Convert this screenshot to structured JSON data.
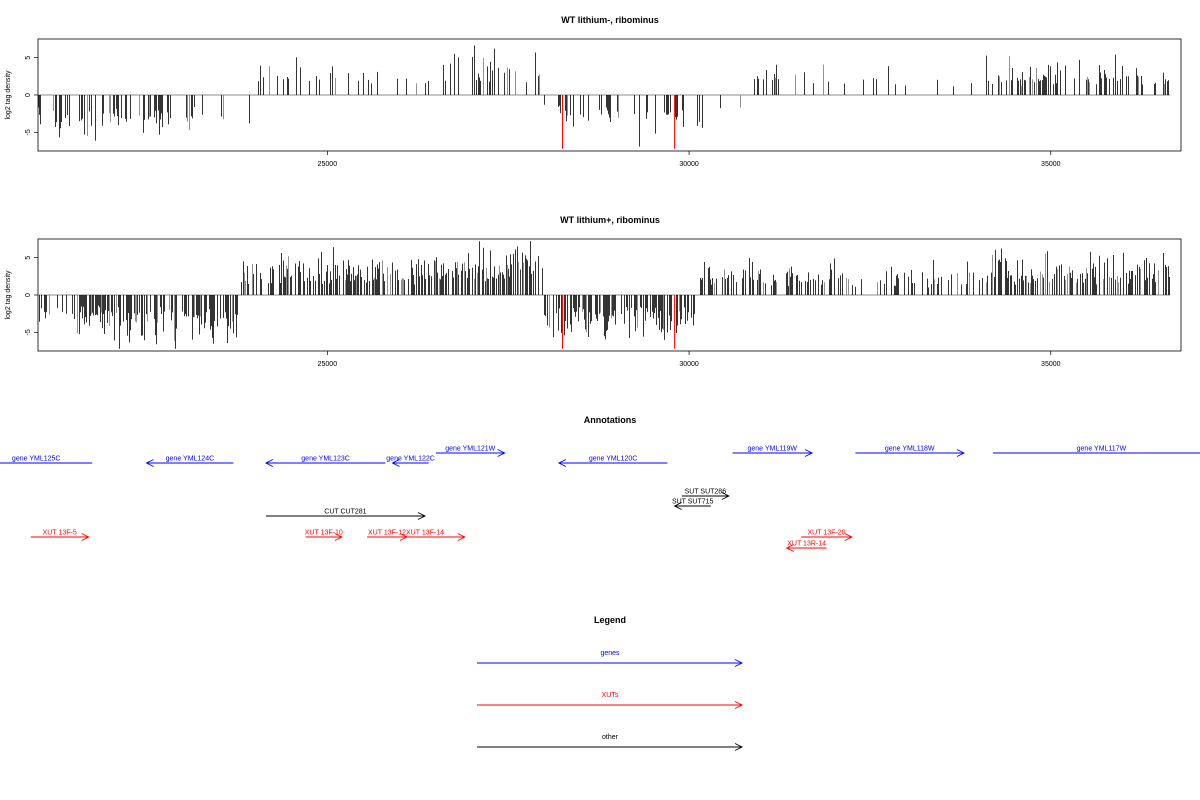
{
  "chart_data": [
    {
      "type": "bar",
      "title": "WT lithium-, ribominus",
      "ylabel": "log2 tag density",
      "xlim": [
        21000,
        36800
      ],
      "ylim": [
        -7.5,
        7.5
      ],
      "x_ticks": [
        25000,
        30000,
        35000
      ],
      "y_ticks": [
        -5,
        0,
        5
      ],
      "x_tick_labels": [
        "25000",
        "30000",
        "35000"
      ],
      "y_tick_labels": [
        "-5",
        "0",
        "5"
      ],
      "baseline_span": [
        21000,
        36650
      ],
      "density_profile": [
        {
          "start": 21000,
          "end": 21200,
          "sign": -1,
          "height": 3.0,
          "dens": 0.25
        },
        {
          "start": 21200,
          "end": 22100,
          "sign": -1,
          "height": 4.0,
          "dens": 0.35
        },
        {
          "start": 22100,
          "end": 23200,
          "sign": -1,
          "height": 4.2,
          "dens": 0.4
        },
        {
          "start": 23200,
          "end": 23950,
          "sign": -1,
          "height": 3.0,
          "dens": 0.06
        },
        {
          "start": 23950,
          "end": 24600,
          "sign": 1,
          "height": 3.8,
          "dens": 0.25
        },
        {
          "start": 24600,
          "end": 26700,
          "sign": 1,
          "height": 2.8,
          "dens": 0.14
        },
        {
          "start": 26700,
          "end": 28000,
          "sign": 1,
          "height": 4.5,
          "dens": 0.3
        },
        {
          "start": 28000,
          "end": 28300,
          "sign": -1,
          "height": 2.5,
          "dens": 0.1
        },
        {
          "start": 28300,
          "end": 30200,
          "sign": -1,
          "height": 4.0,
          "dens": 0.22
        },
        {
          "start": 30200,
          "end": 30850,
          "sign": -1,
          "height": 2.5,
          "dens": 0.06
        },
        {
          "start": 30850,
          "end": 32200,
          "sign": 1,
          "height": 2.8,
          "dens": 0.18
        },
        {
          "start": 32200,
          "end": 34100,
          "sign": 1,
          "height": 2.5,
          "dens": 0.1
        },
        {
          "start": 34100,
          "end": 36650,
          "sign": 1,
          "height": 3.2,
          "dens": 0.35
        }
      ],
      "highlights": [
        {
          "x": 28250,
          "value": -7.2,
          "color": "#ff0000"
        },
        {
          "x": 29800,
          "value": -7.2,
          "color": "#ff0000"
        }
      ]
    },
    {
      "type": "bar",
      "title": "WT lithium+, ribominus",
      "ylabel": "log2 tag density",
      "xlim": [
        21000,
        36800
      ],
      "ylim": [
        -7.5,
        7.5
      ],
      "x_ticks": [
        25000,
        30000,
        35000
      ],
      "y_ticks": [
        -5,
        0,
        5
      ],
      "x_tick_labels": [
        "25000",
        "30000",
        "35000"
      ],
      "y_tick_labels": [
        "-5",
        "0",
        "5"
      ],
      "baseline_span": [
        21000,
        36650
      ],
      "density_profile": [
        {
          "start": 21000,
          "end": 21450,
          "sign": -1,
          "height": 3.0,
          "dens": 0.3
        },
        {
          "start": 21450,
          "end": 22100,
          "sign": -1,
          "height": 3.8,
          "dens": 0.45
        },
        {
          "start": 22100,
          "end": 23800,
          "sign": -1,
          "height": 4.2,
          "dens": 0.6
        },
        {
          "start": 23800,
          "end": 24300,
          "sign": 1,
          "height": 3.5,
          "dens": 0.5
        },
        {
          "start": 24300,
          "end": 26700,
          "sign": 1,
          "height": 3.8,
          "dens": 0.6
        },
        {
          "start": 26700,
          "end": 28000,
          "sign": 1,
          "height": 4.5,
          "dens": 0.6
        },
        {
          "start": 28000,
          "end": 30100,
          "sign": -1,
          "height": 4.0,
          "dens": 0.55
        },
        {
          "start": 30100,
          "end": 32200,
          "sign": 1,
          "height": 3.0,
          "dens": 0.45
        },
        {
          "start": 32200,
          "end": 34100,
          "sign": 1,
          "height": 2.7,
          "dens": 0.35
        },
        {
          "start": 34100,
          "end": 36650,
          "sign": 1,
          "height": 3.8,
          "dens": 0.6
        }
      ],
      "highlights": [
        {
          "x": 28250,
          "value": -7.2,
          "color": "#ff0000"
        },
        {
          "x": 29800,
          "value": -7.2,
          "color": "#ff0000"
        }
      ]
    }
  ],
  "annotations": {
    "title": "Annotations",
    "xlim": [
      21000,
      36800
    ],
    "features": [
      {
        "label": "gene YML125C",
        "start": 20200,
        "end": 21750,
        "strand": "-",
        "kind": "gene",
        "row": 0
      },
      {
        "label": "gene YML124C",
        "start": 22500,
        "end": 23700,
        "strand": "-",
        "kind": "gene",
        "row": 0
      },
      {
        "label": "gene YML123C",
        "start": 24150,
        "end": 25800,
        "strand": "-",
        "kind": "gene",
        "row": 0
      },
      {
        "label": "gene YML122C",
        "start": 25900,
        "end": 26400,
        "strand": "-",
        "kind": "gene",
        "row": 0
      },
      {
        "label": "gene YML121W",
        "start": 26500,
        "end": 27450,
        "strand": "+",
        "kind": "gene",
        "row": -1
      },
      {
        "label": "gene YML120C",
        "start": 28200,
        "end": 29700,
        "strand": "-",
        "kind": "gene",
        "row": 0
      },
      {
        "label": "gene YML119W",
        "start": 30600,
        "end": 31700,
        "strand": "+",
        "kind": "gene",
        "row": 1
      },
      {
        "label": "gene YML118W",
        "start": 32300,
        "end": 33800,
        "strand": "+",
        "kind": "gene",
        "row": 1
      },
      {
        "label": "gene YML117W",
        "start": 34200,
        "end": 37200,
        "strand": "+",
        "kind": "gene",
        "row": 1
      },
      {
        "label": "SUT SUT286",
        "start": 29900,
        "end": 30550,
        "strand": "+",
        "kind": "other",
        "row": 2
      },
      {
        "label": "SUT SUT715",
        "start": 29800,
        "end": 30300,
        "strand": "-",
        "kind": "other",
        "row": 3
      },
      {
        "label": "CUT CUT281",
        "start": 24150,
        "end": 26350,
        "strand": "+",
        "kind": "other",
        "row": 4
      },
      {
        "label": "XUT 13F-5",
        "start": 20900,
        "end": 21700,
        "strand": "+",
        "kind": "xut",
        "row": 5
      },
      {
        "label": "XUT 13F-10",
        "start": 24700,
        "end": 25200,
        "strand": "+",
        "kind": "xut",
        "row": 5
      },
      {
        "label": "XUT 13F-12",
        "start": 25550,
        "end": 26100,
        "strand": "+",
        "kind": "xut",
        "row": 5
      },
      {
        "label": "XUT 13F-14",
        "start": 25800,
        "end": 26900,
        "strand": "+",
        "kind": "xut",
        "row": 5
      },
      {
        "label": "XUT 13F-20",
        "start": 31550,
        "end": 32250,
        "strand": "+",
        "kind": "xut",
        "row": 5
      },
      {
        "label": "XUT 13R-14",
        "start": 31350,
        "end": 31900,
        "strand": "-",
        "kind": "xut",
        "row": 6
      }
    ]
  },
  "legend": {
    "title": "Legend",
    "entries": [
      {
        "label": "genes",
        "color": "#0000ff"
      },
      {
        "label": "XUTs",
        "color": "#ff0000"
      },
      {
        "label": "other",
        "color": "#000000"
      }
    ]
  },
  "colors": {
    "gene": "#0000ff",
    "xut": "#ff0000",
    "other": "#000000"
  }
}
